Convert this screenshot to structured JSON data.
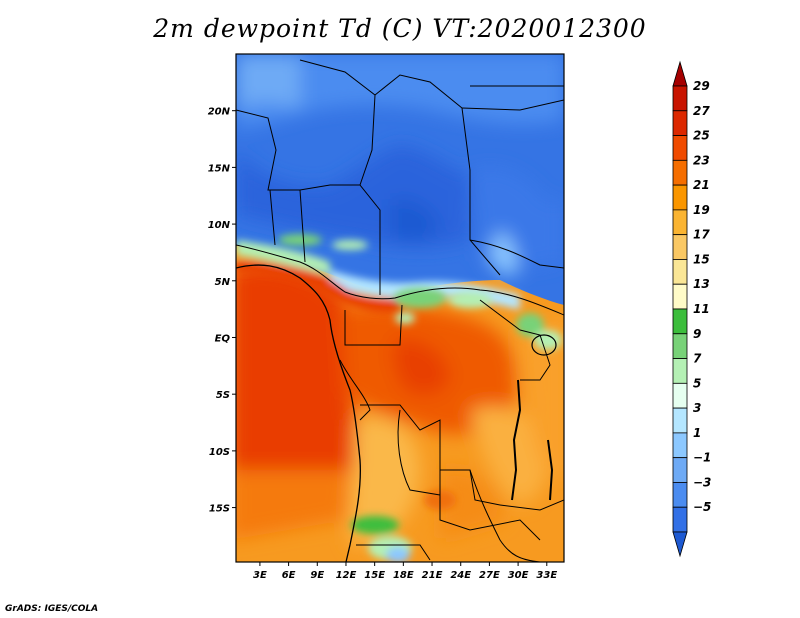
{
  "title": "2m dewpoint Td (C) VT:2020012300",
  "credit": "GrADS: IGES/COLA",
  "map": {
    "lat_ticks": [
      "20N",
      "15N",
      "10N",
      "5N",
      "EQ",
      "5S",
      "10S",
      "15S"
    ],
    "lat_values": [
      20,
      15,
      10,
      5,
      0,
      -5,
      -10,
      -15
    ],
    "lon_ticks": [
      "3E",
      "6E",
      "9E",
      "12E",
      "15E",
      "18E",
      "21E",
      "24E",
      "27E",
      "30E",
      "33E"
    ],
    "lon_values": [
      3,
      6,
      9,
      12,
      15,
      18,
      21,
      24,
      27,
      30,
      33
    ],
    "lon_range": [
      0.5,
      34.8
    ],
    "lat_range": [
      -19.8,
      25
    ]
  },
  "colorbar": {
    "labels": [
      "29",
      "27",
      "25",
      "23",
      "21",
      "19",
      "17",
      "15",
      "13",
      "11",
      "9",
      "7",
      "5",
      "3",
      "1",
      "−1",
      "−3",
      "−5"
    ],
    "colors": [
      "#a50000",
      "#c81400",
      "#dc2800",
      "#f04b00",
      "#f56e00",
      "#fa9600",
      "#fab432",
      "#fac864",
      "#fae696",
      "#fffbc8",
      "#3cbe3c",
      "#78d278",
      "#b4f0b4",
      "#e6fff0",
      "#b4e6ff",
      "#8cc8ff",
      "#6eaaf5",
      "#4b8cf0",
      "#3270e6",
      "#1e5ad2"
    ]
  }
}
